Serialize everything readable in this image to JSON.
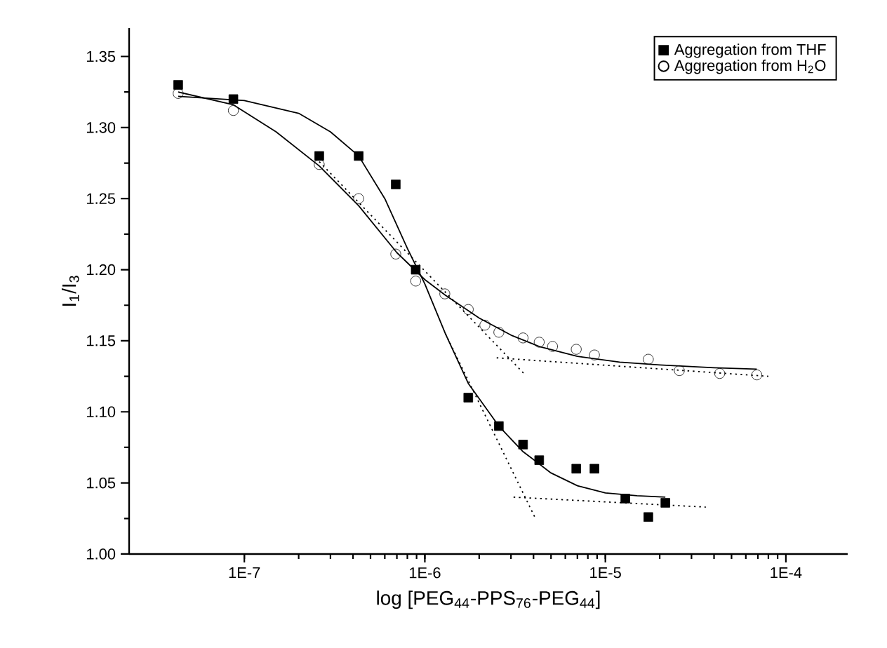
{
  "chart_data": {
    "type": "scatter",
    "xlabel": "log [PEG$_{44}$-PPS$_{76}$-PEG$_{44}$]",
    "ylabel": "I$_{1}$/I$_{3}$",
    "log": "x",
    "xlim": [
      2.3e-08,
      0.00022
    ],
    "ylim": [
      1.0,
      1.37
    ],
    "xticks": [
      {
        "value": 1e-07,
        "label": "1E-7"
      },
      {
        "value": 1e-06,
        "label": "1E-6"
      },
      {
        "value": 1e-05,
        "label": "1E-5"
      },
      {
        "value": 0.0001,
        "label": "1E-4"
      }
    ],
    "yticks": [
      {
        "value": 1.0,
        "label": "1.00"
      },
      {
        "value": 1.05,
        "label": "1.05"
      },
      {
        "value": 1.1,
        "label": "1.10"
      },
      {
        "value": 1.15,
        "label": "1.15"
      },
      {
        "value": 1.2,
        "label": "1.20"
      },
      {
        "value": 1.25,
        "label": "1.25"
      },
      {
        "value": 1.3,
        "label": "1.30"
      },
      {
        "value": 1.35,
        "label": "1.35"
      }
    ],
    "grid": false,
    "legend": "top right",
    "series": [
      {
        "name": "Aggregation from THF",
        "marker": "square",
        "color": "#000000",
        "x": [
          4.3e-08,
          8.7e-08,
          2.6e-07,
          4.3e-07,
          6.9e-07,
          8.9e-07,
          1.74e-06,
          2.57e-06,
          3.5e-06,
          4.3e-06,
          6.9e-06,
          8.7e-06,
          1.29e-05,
          1.73e-05,
          2.15e-05
        ],
        "values": [
          1.33,
          1.32,
          1.28,
          1.28,
          1.26,
          1.2,
          1.11,
          1.09,
          1.077,
          1.066,
          1.06,
          1.06,
          1.039,
          1.026,
          1.036
        ]
      },
      {
        "name": "Aggregation from H$_{2}$O",
        "marker": "circle",
        "color": "#000000",
        "x": [
          4.3e-08,
          8.7e-08,
          2.6e-07,
          4.3e-07,
          6.9e-07,
          8.9e-07,
          1.29e-06,
          1.74e-06,
          2.15e-06,
          2.57e-06,
          3.5e-06,
          4.3e-06,
          5.1e-06,
          6.9e-06,
          8.7e-06,
          1.73e-05,
          2.57e-05,
          4.3e-05,
          6.9e-05
        ],
        "values": [
          1.324,
          1.312,
          1.274,
          1.25,
          1.211,
          1.192,
          1.183,
          1.172,
          1.161,
          1.156,
          1.152,
          1.149,
          1.146,
          1.144,
          1.14,
          1.137,
          1.129,
          1.127,
          1.126
        ]
      },
      {
        "type": "line",
        "marker": "none",
        "line_style": "solid",
        "color": "#000000",
        "x": [
          4.3e-08,
          1e-07,
          2e-07,
          3e-07,
          4.3e-07,
          6e-07,
          8e-07,
          1e-06,
          1.3e-06,
          1.74e-06,
          2.57e-06,
          3.5e-06,
          5e-06,
          7e-06,
          1e-05,
          1.5e-05,
          2.15e-05
        ],
        "values": [
          1.322,
          1.319,
          1.31,
          1.297,
          1.28,
          1.25,
          1.215,
          1.19,
          1.155,
          1.12,
          1.09,
          1.072,
          1.057,
          1.048,
          1.043,
          1.041,
          1.04
        ]
      },
      {
        "type": "line",
        "marker": "none",
        "line_style": "solid",
        "color": "#000000",
        "x": [
          4.3e-08,
          8.7e-08,
          1.5e-07,
          2.6e-07,
          4.3e-07,
          7e-07,
          1e-06,
          1.3e-06,
          2e-06,
          3e-06,
          4.3e-06,
          7e-06,
          1.2e-05,
          2e-05,
          4e-05,
          6.9e-05
        ],
        "values": [
          1.325,
          1.316,
          1.297,
          1.273,
          1.245,
          1.212,
          1.193,
          1.182,
          1.166,
          1.154,
          1.146,
          1.139,
          1.135,
          1.133,
          1.131,
          1.13
        ]
      },
      {
        "type": "line",
        "marker": "none",
        "line_style": "dotted",
        "color": "#000000",
        "x": [
          1.3e-06,
          4.1e-06
        ],
        "values": [
          1.155,
          1.025
        ]
      },
      {
        "type": "line",
        "marker": "none",
        "line_style": "dotted",
        "color": "#000000",
        "x": [
          3.1e-06,
          3.6e-05
        ],
        "values": [
          1.04,
          1.033
        ]
      },
      {
        "type": "line",
        "marker": "none",
        "line_style": "dotted",
        "color": "#000000",
        "x": [
          2.6e-07,
          3.6e-06
        ],
        "values": [
          1.276,
          1.126
        ]
      },
      {
        "type": "line",
        "marker": "none",
        "line_style": "dotted",
        "color": "#000000",
        "x": [
          2.5e-06,
          8e-05
        ],
        "values": [
          1.138,
          1.125
        ]
      }
    ]
  }
}
